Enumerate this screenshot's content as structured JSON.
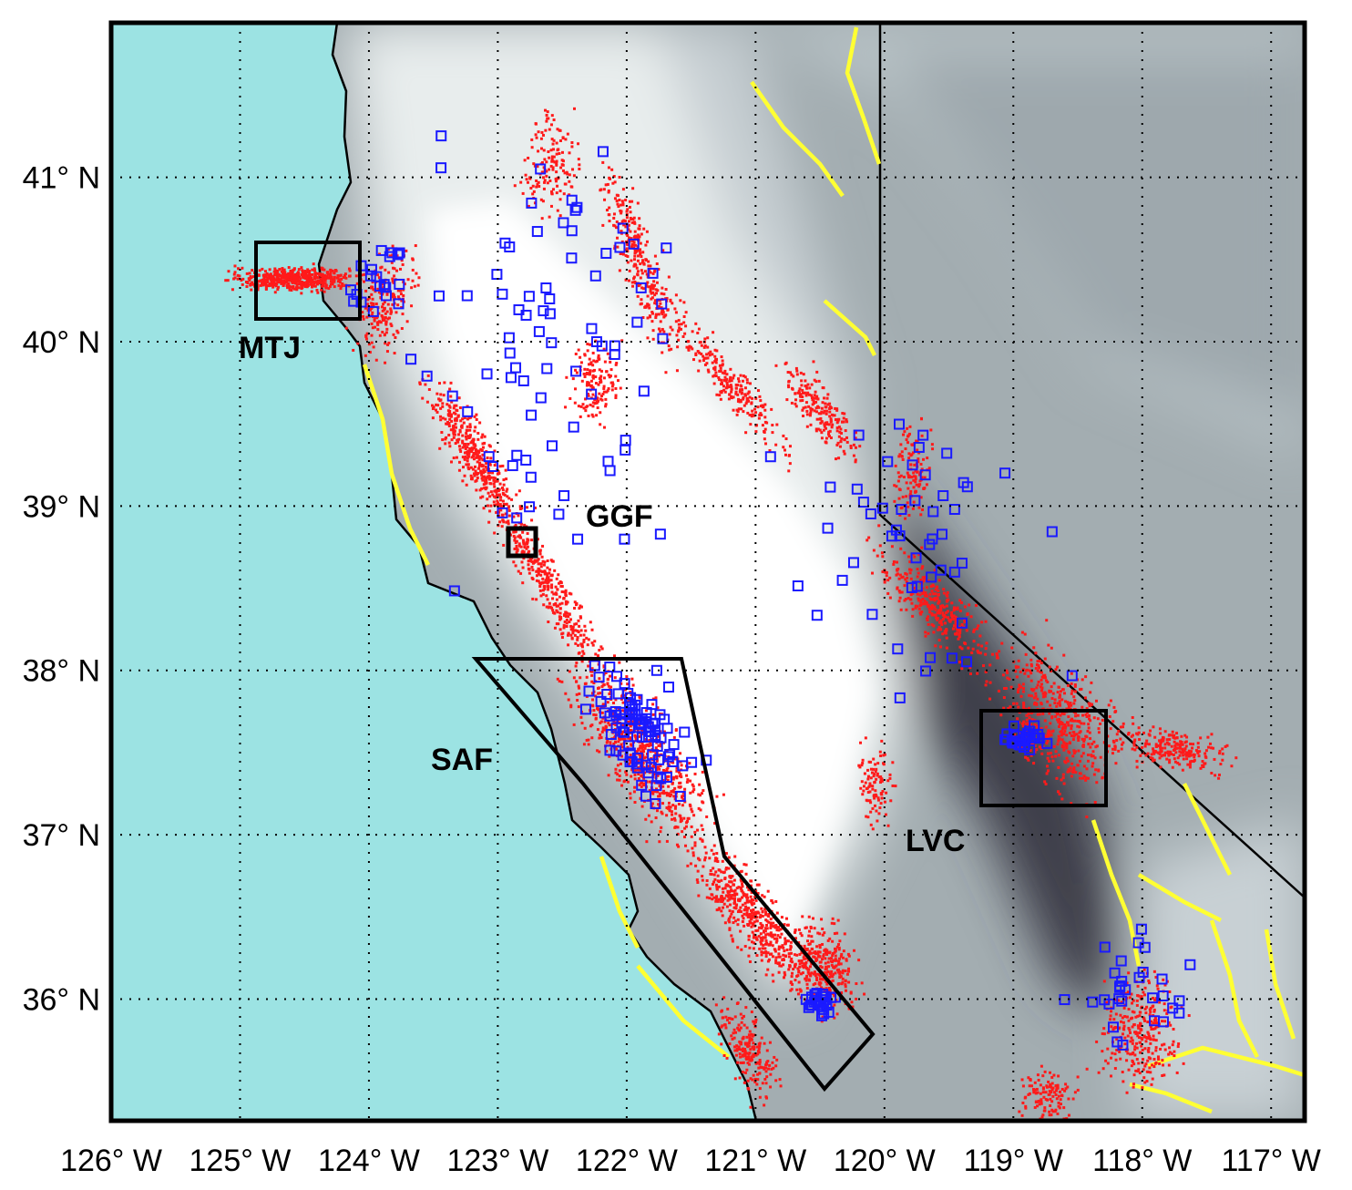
{
  "chart_data": {
    "type": "map",
    "xlim": [
      -126,
      -116.74
    ],
    "ylim": [
      35.26,
      41.94
    ],
    "xticks": [
      {
        "value": -126,
        "label": "126° W"
      },
      {
        "value": -125,
        "label": "125° W"
      },
      {
        "value": -124,
        "label": "124° W"
      },
      {
        "value": -123,
        "label": "123° W"
      },
      {
        "value": -122,
        "label": "122° W"
      },
      {
        "value": -121,
        "label": "121° W"
      },
      {
        "value": -120,
        "label": "120° W"
      },
      {
        "value": -119,
        "label": "119° W"
      },
      {
        "value": -118,
        "label": "118° W"
      },
      {
        "value": -117,
        "label": "117° W"
      }
    ],
    "yticks": [
      {
        "value": 36,
        "label": "36° N"
      },
      {
        "value": 37,
        "label": "37° N"
      },
      {
        "value": 38,
        "label": "38° N"
      },
      {
        "value": 39,
        "label": "39° N"
      },
      {
        "value": 40,
        "label": "40° N"
      },
      {
        "value": 41,
        "label": "41° N"
      }
    ],
    "grid": true,
    "annotations": [
      "MTJ",
      "GGF",
      "SAF",
      "LVC"
    ]
  }
}
